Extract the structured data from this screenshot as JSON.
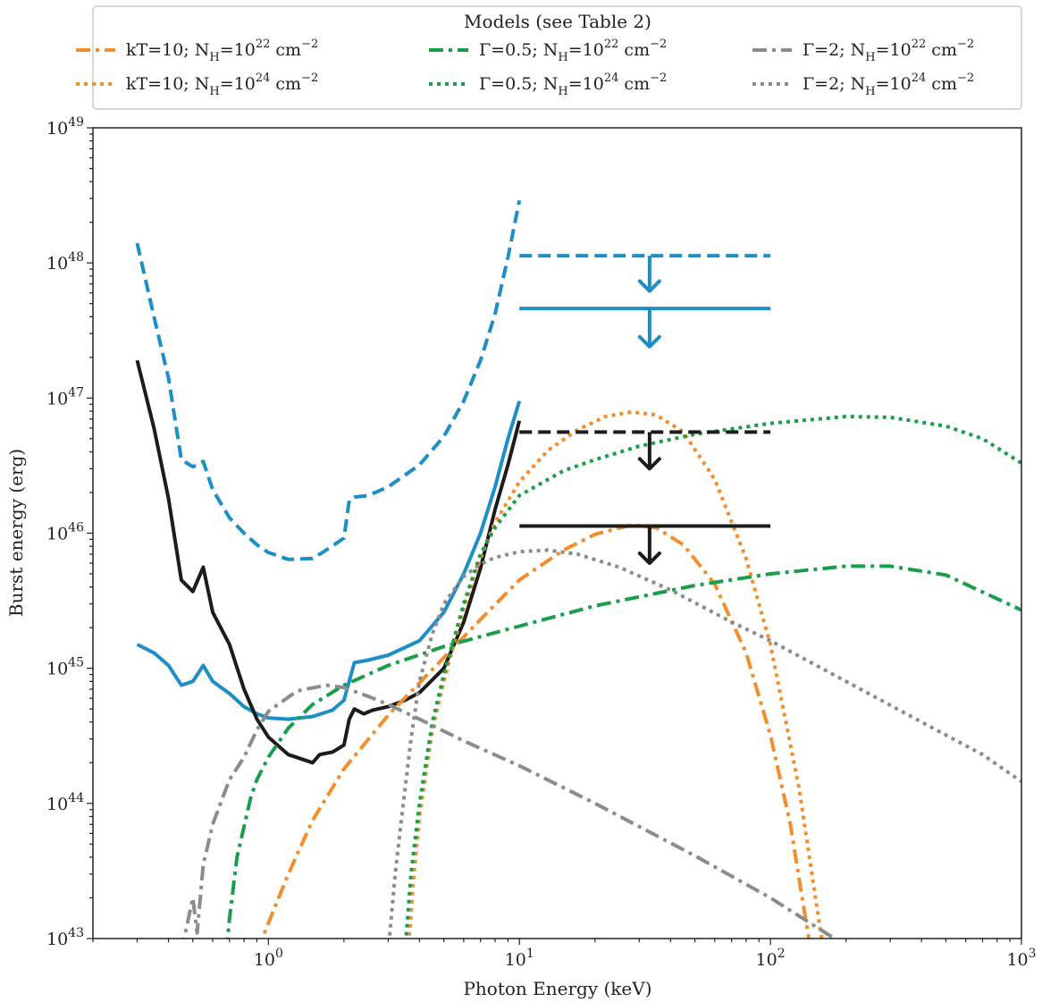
{
  "chart_data": {
    "type": "line",
    "xlabel": "Photon Energy (keV)",
    "ylabel": "Burst energy (erg)",
    "xscale": "log",
    "yscale": "log",
    "xlim": [
      0.2,
      1000
    ],
    "ylim": [
      1e+43,
      1e+49
    ],
    "x_ticks": [
      {
        "value": 1,
        "base": "10",
        "exp": "0"
      },
      {
        "value": 10,
        "base": "10",
        "exp": "1"
      },
      {
        "value": 100,
        "base": "10",
        "exp": "2"
      },
      {
        "value": 1000,
        "base": "10",
        "exp": "3"
      }
    ],
    "y_ticks": [
      {
        "value": 1e+43,
        "base": "10",
        "exp": "43"
      },
      {
        "value": 1e+44,
        "base": "10",
        "exp": "44"
      },
      {
        "value": 1e+45,
        "base": "10",
        "exp": "45"
      },
      {
        "value": 1e+46,
        "base": "10",
        "exp": "46"
      },
      {
        "value": 1e+47,
        "base": "10",
        "exp": "47"
      },
      {
        "value": 1e+48,
        "base": "10",
        "exp": "48"
      },
      {
        "value": 1e+49,
        "base": "10",
        "exp": "49"
      }
    ],
    "grid": false,
    "legend": {
      "title": "Models (see Table 2)",
      "placement": "top-center, above plot",
      "entries": [
        {
          "prefix": "kT=10; N",
          "sub": "H",
          "mid": "=10",
          "sup1": "22",
          "unit": " cm",
          "sup2": "−2",
          "color": "#f28e2b",
          "dash": "dashdot"
        },
        {
          "prefix": "kT=10; N",
          "sub": "H",
          "mid": "=10",
          "sup1": "24",
          "unit": " cm",
          "sup2": "−2",
          "color": "#f28e2b",
          "dash": "dotted"
        },
        {
          "prefix": "Γ=0.5; N",
          "sub": "H",
          "mid": "=10",
          "sup1": "22",
          "unit": " cm",
          "sup2": "−2",
          "color": "#1a9e4a",
          "dash": "dashdot"
        },
        {
          "prefix": "Γ=0.5; N",
          "sub": "H",
          "mid": "=10",
          "sup1": "24",
          "unit": " cm",
          "sup2": "−2",
          "color": "#1a9e4a",
          "dash": "dotted"
        },
        {
          "prefix": "Γ=2; N",
          "sub": "H",
          "mid": "=10",
          "sup1": "22",
          "unit": " cm",
          "sup2": "−2",
          "color": "#8c8c8c",
          "dash": "dashdot"
        },
        {
          "prefix": "Γ=2; N",
          "sub": "H",
          "mid": "=10",
          "sup1": "24",
          "unit": " cm",
          "sup2": "−2",
          "color": "#8c8c8c",
          "dash": "dotted"
        }
      ]
    },
    "series": [
      {
        "color": "#1b8fc6",
        "dash": "dashed",
        "width": 4,
        "x": [
          0.3,
          0.35,
          0.4,
          0.45,
          0.5,
          0.55,
          0.6,
          0.7,
          0.8,
          0.9,
          1.0,
          1.2,
          1.5,
          1.7,
          2.0,
          2.1,
          2.2,
          2.5,
          3.0,
          4.0,
          5.0,
          6.0,
          7.0,
          8.0,
          9.0,
          10.0
        ],
        "y": [
          1.4e+48,
          4e+47,
          1.4e+47,
          3.5e+46,
          3.1e+46,
          3.4e+46,
          2.1e+46,
          1.3e+46,
          1e+46,
          8.2e+45,
          7.2e+45,
          6.4e+45,
          6.5e+45,
          7.5e+45,
          9.2e+45,
          1.75e+46,
          1.85e+46,
          1.9e+46,
          2.2e+46,
          3.2e+46,
          5.2e+46,
          9.5e+46,
          1.9e+47,
          4.2e+47,
          1.1e+48,
          2.9e+48
        ]
      },
      {
        "color": "#1b8fc6",
        "dash": "solid",
        "width": 4,
        "x": [
          0.3,
          0.35,
          0.4,
          0.45,
          0.5,
          0.55,
          0.6,
          0.7,
          0.8,
          0.9,
          1.0,
          1.2,
          1.5,
          1.8,
          2.0,
          2.2,
          2.5,
          3.0,
          4.0,
          5.0,
          6.0,
          7.0,
          8.0,
          9.0,
          10.0
        ],
        "y": [
          1.5e+45,
          1.3e+45,
          1.05e+45,
          7.5e+44,
          8e+44,
          1.05e+45,
          8e+44,
          6.5e+44,
          5.2e+44,
          4.6e+44,
          4.3e+44,
          4.2e+44,
          4.4e+44,
          4.9e+44,
          5.8e+44,
          1.1e+45,
          1.15e+45,
          1.25e+45,
          1.6e+45,
          2.6e+45,
          5e+45,
          1e+46,
          2.2e+46,
          5e+46,
          9.5e+46
        ]
      },
      {
        "color": "#1c1c1c",
        "dash": "solid",
        "width": 4,
        "x": [
          0.3,
          0.35,
          0.4,
          0.45,
          0.5,
          0.55,
          0.6,
          0.7,
          0.8,
          0.9,
          1.0,
          1.2,
          1.5,
          1.6,
          1.8,
          2.0,
          2.1,
          2.2,
          2.4,
          2.6,
          3.0,
          3.5,
          4.0,
          5.0,
          6.0,
          7.0,
          8.0,
          9.0,
          10.0
        ],
        "y": [
          1.9e+47,
          6e+46,
          1.8e+46,
          4.5e+45,
          3.7e+45,
          5.6e+45,
          2.6e+45,
          1.5e+45,
          7e+44,
          4.2e+44,
          3.1e+44,
          2.3e+44,
          2e+44,
          2.3e+44,
          2.4e+44,
          2.7e+44,
          4.2e+44,
          5e+44,
          4.6e+44,
          4.9e+44,
          5.2e+44,
          5.8e+44,
          6.6e+44,
          1e+45,
          2.2e+45,
          5.5e+45,
          1.5e+46,
          3.2e+46,
          6.8e+46
        ]
      },
      {
        "color": "#f28e2b",
        "dash": "dashdot",
        "width": 4,
        "x": [
          0.9,
          1.0,
          1.2,
          1.5,
          2.0,
          3.0,
          5.0,
          7.0,
          10.0,
          15.0,
          20.0,
          28.0,
          35.0,
          45.0,
          60.0,
          80.0,
          100.0,
          120.0,
          145.0
        ],
        "y": [
          8e+42,
          1.3e+43,
          3e+43,
          7.5e+43,
          1.8e+44,
          4.5e+44,
          1.2e+45,
          2.3e+45,
          4.5e+45,
          7.5e+45,
          9.8e+45,
          1.15e+46,
          1.1e+46,
          8.2e+45,
          4.2e+45,
          1.3e+45,
          3.2e+44,
          7e+43,
          8e+42
        ]
      },
      {
        "color": "#f28e2b",
        "dash": "dotted",
        "width": 4,
        "x": [
          3.6,
          3.8,
          4.0,
          4.5,
          5.0,
          6.0,
          7.0,
          8.0,
          10.0,
          13.0,
          17.0,
          22.0,
          28.0,
          35.0,
          45.0,
          60.0,
          80.0,
          100.0,
          130.0,
          160.0
        ],
        "y": [
          8e+42,
          3e+43,
          8e+43,
          3.5e+44,
          8e+44,
          2.8e+45,
          6.5e+45,
          1.2e+46,
          2.4e+46,
          4.1e+46,
          5.8e+46,
          7.3e+46,
          7.9e+46,
          7.5e+46,
          5.6e+46,
          2.5e+46,
          6.5e+45,
          1.5e+45,
          1.3e+44,
          1e+43
        ]
      },
      {
        "color": "#1a9e4a",
        "dash": "dashdot",
        "width": 4,
        "x": [
          0.68,
          0.7,
          0.75,
          0.85,
          0.9,
          1.0,
          1.2,
          1.5,
          2.0,
          3.0,
          5.0,
          10.0,
          20.0,
          50.0,
          100.0,
          200.0,
          300.0,
          500.0,
          1000.0
        ],
        "y": [
          8e+42,
          1.4e+43,
          4e+43,
          1.1e+44,
          1.5e+44,
          2.2e+44,
          3.6e+44,
          5.4e+44,
          7.5e+44,
          1.05e+45,
          1.45e+45,
          2.05e+45,
          2.9e+45,
          4.1e+45,
          5e+45,
          5.7e+45,
          5.7e+45,
          4.9e+45,
          2.7e+45
        ]
      },
      {
        "color": "#1a9e4a",
        "dash": "dotted",
        "width": 4,
        "x": [
          3.5,
          3.7,
          4.0,
          4.5,
          5.0,
          6.0,
          7.0,
          8.0,
          10.0,
          15.0,
          20.0,
          30.0,
          50.0,
          100.0,
          200.0,
          300.0,
          500.0,
          700.0,
          1000.0
        ],
        "y": [
          8e+42,
          3e+43,
          1e+44,
          4e+44,
          9e+44,
          3e+45,
          7e+45,
          1.1e+46,
          1.9e+46,
          2.9e+46,
          3.5e+46,
          4.4e+46,
          5.4e+46,
          6.5e+46,
          7.3e+46,
          7.2e+46,
          6.2e+46,
          5e+46,
          3.3e+46
        ]
      },
      {
        "color": "#8c8c8c",
        "dash": "dashdot",
        "width": 4,
        "x": [
          0.45,
          0.5,
          0.52,
          0.55,
          0.6,
          0.7,
          0.8,
          0.9,
          1.0,
          1.3,
          1.7,
          2.0,
          2.5,
          3.0,
          4.0,
          6.0,
          10.0,
          20.0,
          50.0,
          100.0,
          180.0
        ],
        "y": [
          8e+42,
          2e+43,
          1.1e+43,
          3.5e+43,
          7e+43,
          1.5e+44,
          2.2e+44,
          3.5e+44,
          4.8e+44,
          6.8e+44,
          7.5e+44,
          7.2e+44,
          6.2e+44,
          5.4e+44,
          4.2e+44,
          2.9e+44,
          1.9e+44,
          1e+44,
          4.1e+43,
          2e+43,
          1e+43
        ]
      },
      {
        "color": "#8c8c8c",
        "dash": "dotted",
        "width": 4,
        "x": [
          3.0,
          3.2,
          3.4,
          3.7,
          4.0,
          4.5,
          5.0,
          6.0,
          7.0,
          8.0,
          10.0,
          13.0,
          17.0,
          25.0,
          40.0,
          70.0,
          100.0,
          200.0,
          400.0,
          700.0,
          1000.0
        ],
        "y": [
          8e+42,
          3e+43,
          8e+43,
          3e+44,
          8e+44,
          1.8e+45,
          3e+45,
          4.8e+45,
          5.9e+45,
          6.6e+45,
          7.3e+45,
          7.5e+45,
          7e+45,
          5.6e+45,
          3.8e+45,
          2.2e+45,
          1.6e+45,
          8e+44,
          4e+44,
          2.3e+44,
          1.45e+44
        ]
      }
    ],
    "upper_limits": [
      {
        "color": "#1b8fc6",
        "dash": "dashed",
        "x_range": [
          10,
          100
        ],
        "y": 1.13e+48,
        "arrow_x": 33,
        "arrow_to": 6.2e+47
      },
      {
        "color": "#1b8fc6",
        "dash": "solid",
        "x_range": [
          10,
          100
        ],
        "y": 4.6e+47,
        "arrow_x": 33,
        "arrow_to": 2.4e+47
      },
      {
        "color": "#1c1c1c",
        "dash": "dashed",
        "x_range": [
          10,
          100
        ],
        "y": 5.6e+46,
        "arrow_x": 33,
        "arrow_to": 3e+46
      },
      {
        "color": "#1c1c1c",
        "dash": "solid",
        "x_range": [
          10,
          100
        ],
        "y": 1.13e+46,
        "arrow_x": 33,
        "arrow_to": 6e+45
      }
    ]
  }
}
